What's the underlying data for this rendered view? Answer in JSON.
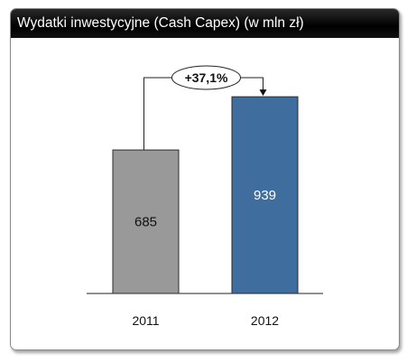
{
  "chart_data": {
    "type": "bar",
    "title": "Wydatki inwestycyjne (Cash Capex) (w mln zł)",
    "categories": [
      "2011",
      "2012"
    ],
    "values": [
      685,
      939
    ],
    "bar_colors": [
      "#999999",
      "#3f6e9e"
    ],
    "value_label_colors": [
      "#111111",
      "#ffffff"
    ],
    "annotation": {
      "from": "2011",
      "to": "2012",
      "label": "+37,1%"
    },
    "ylim": [
      0,
      1000
    ],
    "grid": false,
    "legend": "none"
  }
}
